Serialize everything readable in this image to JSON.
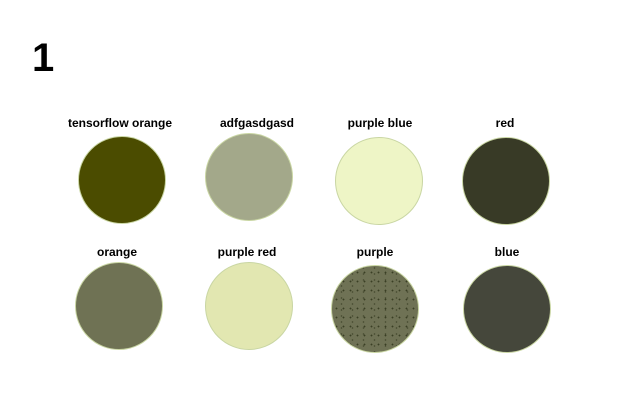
{
  "page": {
    "number": "1"
  },
  "swatches": [
    {
      "label": "tensorflow orange",
      "color": "#4b4c00"
    },
    {
      "label": "adfgasdgasd",
      "color": "#a3a88a"
    },
    {
      "label": "purple blue",
      "color": "#eef5c6"
    },
    {
      "label": "red",
      "color": "#383a26"
    },
    {
      "label": "orange",
      "color": "#6f7254"
    },
    {
      "label": "purple red",
      "color": "#e2e7b1"
    },
    {
      "label": "purple",
      "color": "#6f7255"
    },
    {
      "label": "blue",
      "color": "#45473b"
    }
  ]
}
